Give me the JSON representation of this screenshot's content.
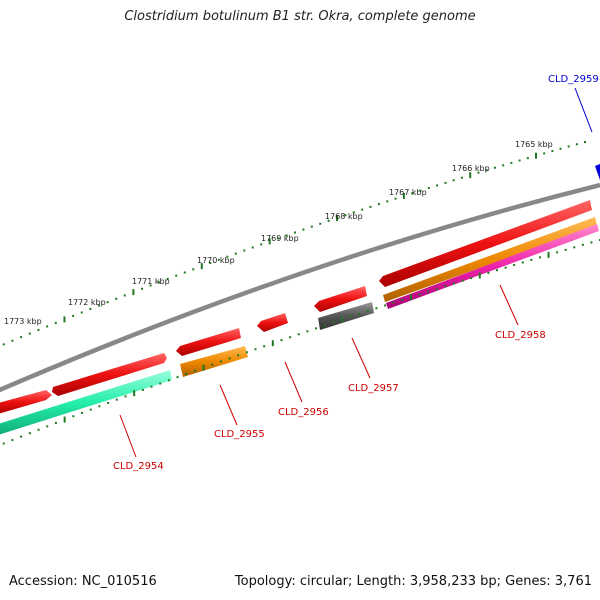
{
  "title": "Clostridium botulinum B1 str. Okra, complete genome",
  "accession_text": "Accession: NC_010516",
  "topology_text": "Topology: circular; Length: 3,958,233 bp; Genes: 3,761",
  "scale_labels": [
    "1773 kbp",
    "1772 kbp",
    "1771 kbp",
    "1770 kbp",
    "1769 kbp",
    "1768 kbp",
    "1767 kbp",
    "1766 kbp",
    "1765 kbp"
  ],
  "gene_labels": [
    {
      "name": "CLD_2959",
      "color": "#0000cc"
    },
    {
      "name": "CLD_2958",
      "color": "#cc0000"
    },
    {
      "name": "CLD_2957",
      "color": "#cc0000"
    },
    {
      "name": "CLD_2956",
      "color": "#cc0000"
    },
    {
      "name": "CLD_2955",
      "color": "#cc0000"
    },
    {
      "name": "CLD_2954",
      "color": "#cc0000"
    }
  ],
  "colors": {
    "cds": "#ee1111",
    "backbone": "#888888",
    "tick": "#227722",
    "orange": "#ee8800",
    "gray_feature": "#555555",
    "green_feature": "#22eeaa",
    "pink_feature": "#ee22aa",
    "blue_feature": "#0000dd"
  }
}
